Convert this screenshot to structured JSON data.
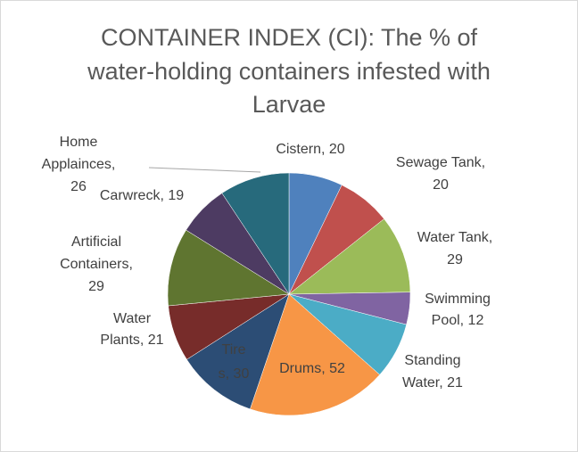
{
  "chart_data": {
    "type": "pie",
    "title": "CONTAINER INDEX (CI): The % of water-holding containers infested with Larvae",
    "values": [
      20,
      20,
      29,
      12,
      21,
      52,
      30,
      21,
      29,
      19,
      26
    ],
    "value_labels": [
      "Cistern, 20",
      "Sewage Tank, 20",
      "Water Tank, 29",
      "Swimming Pool, 12",
      "Standing Water, 21",
      "Drums, 52",
      "Tires, 30",
      "Water Plants, 21",
      "Artificial Containers, 29",
      "Carwreck, 19",
      "Home Applainces, 26"
    ],
    "colors": [
      "#4f81bd",
      "#c0504d",
      "#9bbb59",
      "#8064a2",
      "#4bacc6",
      "#f79646",
      "#2c4d75",
      "#772c2a",
      "#5f7530",
      "#4d3b62",
      "#276a7c"
    ]
  }
}
